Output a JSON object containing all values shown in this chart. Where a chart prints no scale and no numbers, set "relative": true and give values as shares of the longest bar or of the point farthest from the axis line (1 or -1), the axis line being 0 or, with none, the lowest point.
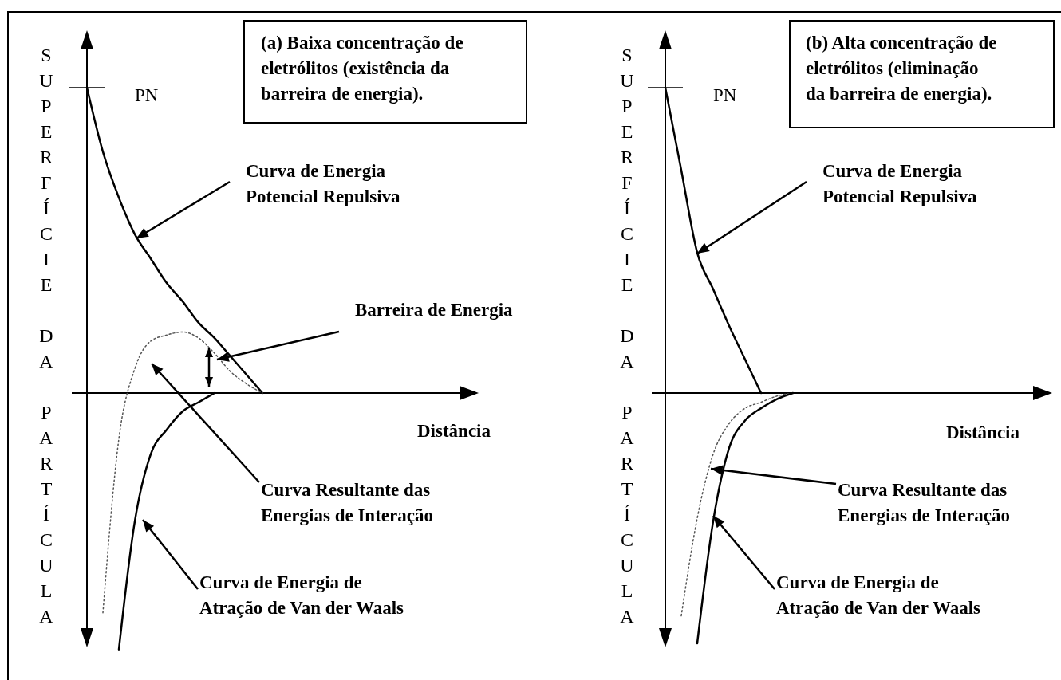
{
  "chart_data": [
    {
      "type": "line",
      "relative": true,
      "title": "(a) Baixa concentração de\neletrólitos (existência da\nbarreira de energia).",
      "xlabel": "Distância",
      "ylabel": "SUPERFÍCIE DA PARTÍCULA",
      "annotations": [
        "PN",
        "Barreira de Energia"
      ],
      "categories": [
        null,
        null,
        null,
        null,
        null,
        null,
        null,
        null,
        null,
        null,
        null,
        null,
        null,
        null,
        null,
        null,
        null,
        null,
        null,
        null,
        null,
        null,
        null,
        null,
        null
      ],
      "series": [
        {
          "name": "Curva de Energia\nPotencial Repulsiva",
          "color": "#000000",
          "values": [
            1,
            0.79,
            0.64,
            0.52,
            0.44,
            0.36,
            0.3,
            0.23,
            0.18,
            0.12,
            0.06,
            0,
            null,
            null,
            null,
            null,
            null,
            null,
            null,
            null,
            null,
            null,
            null,
            null,
            null
          ]
        },
        {
          "name": "Curva Resultante das\nEnergias de Interação",
          "color": "#555555",
          "line_style": "dotted",
          "values": [
            null,
            -0.72,
            -0.15,
            0.08,
            0.17,
            0.19,
            0.2,
            0.18,
            0.13,
            0.07,
            0.03,
            0,
            null,
            null,
            null,
            null,
            null,
            null,
            null,
            null,
            null,
            null,
            null,
            null,
            null
          ]
        },
        {
          "name": "Curva de Energia de\nAtração de Van der Waals",
          "color": "#000000",
          "values": [
            null,
            null,
            -0.84,
            -0.42,
            -0.2,
            -0.12,
            -0.06,
            -0.03,
            0,
            null,
            null,
            null,
            null,
            null,
            null,
            null,
            null,
            null,
            null,
            null,
            null,
            null,
            null,
            null,
            null
          ]
        }
      ]
    },
    {
      "type": "line",
      "relative": true,
      "title": "(b) Alta concentração de\neletrólitos (eliminação\nda barreira de energia).",
      "xlabel": "Distância",
      "ylabel": "SUPERFÍCIE DA PARTÍCULA",
      "annotations": [
        "PN"
      ],
      "categories": [
        null,
        null,
        null,
        null,
        null,
        null,
        null,
        null,
        null,
        null,
        null,
        null,
        null,
        null,
        null,
        null,
        null,
        null,
        null,
        null,
        null,
        null,
        null,
        null,
        null
      ],
      "series": [
        {
          "name": "Curva de Energia\nPotencial Repulsiva",
          "color": "#000000",
          "values": [
            1,
            0.73,
            0.46,
            0.34,
            0.22,
            0.11,
            0,
            null,
            null,
            null,
            null,
            null,
            null,
            null,
            null,
            null,
            null,
            null,
            null,
            null,
            null,
            null,
            null,
            null,
            null
          ]
        },
        {
          "name": "Curva Resultante das\nEnergias de Interação",
          "color": "#555555",
          "line_style": "dotted",
          "values": [
            null,
            -0.73,
            -0.41,
            -0.2,
            -0.1,
            -0.05,
            -0.03,
            -0.01,
            0,
            null,
            null,
            null,
            null,
            null,
            null,
            null,
            null,
            null,
            null,
            null,
            null,
            null,
            null,
            null,
            null
          ]
        },
        {
          "name": "Curva de Energia de\nAtração de Van der Waals",
          "color": "#000000",
          "values": [
            null,
            null,
            -0.82,
            -0.42,
            -0.18,
            -0.09,
            -0.05,
            -0.02,
            0,
            null,
            null,
            null,
            null,
            null,
            null,
            null,
            null,
            null,
            null,
            null,
            null,
            null,
            null,
            null,
            null
          ]
        }
      ]
    }
  ]
}
